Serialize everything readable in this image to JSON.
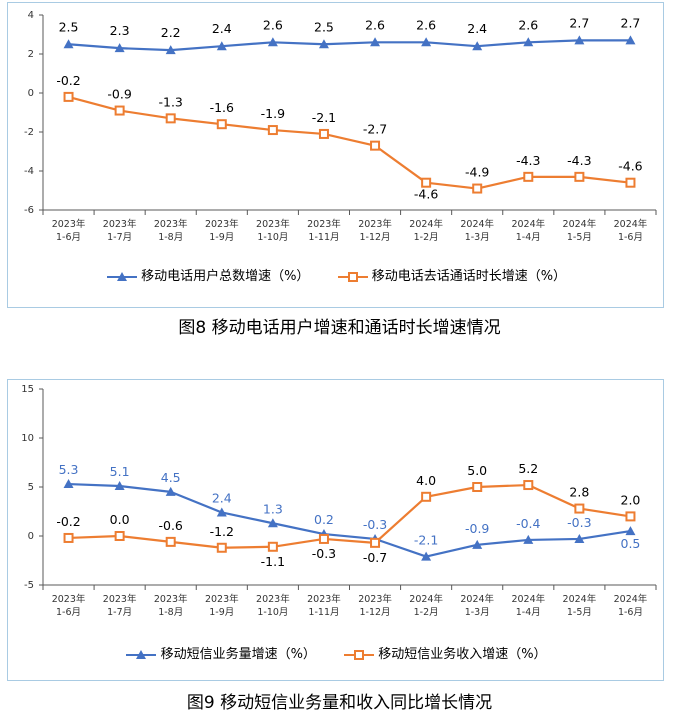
{
  "charts": [
    {
      "id": "chart1",
      "caption": "图8 移动电话用户增速和通话时长增速情况",
      "chart_data": {
        "type": "line",
        "categories": [
          "2023年\n1-6月",
          "2023年\n1-7月",
          "2023年\n1-8月",
          "2023年\n1-9月",
          "2023年\n1-10月",
          "2023年\n1-11月",
          "2023年\n1-12月",
          "2024年\n1-2月",
          "2024年\n1-3月",
          "2024年\n1-4月",
          "2024年\n1-5月",
          "2024年\n1-6月"
        ],
        "ylim": [
          -6,
          4
        ],
        "yticks": [
          -6,
          -4,
          -2,
          0,
          2,
          4
        ],
        "series": [
          {
            "name": "移动电话用户总数增速（%）",
            "color": "#4472c4",
            "marker": "triangle",
            "values": [
              2.5,
              2.3,
              2.2,
              2.4,
              2.6,
              2.5,
              2.6,
              2.6,
              2.4,
              2.6,
              2.7,
              2.7
            ]
          },
          {
            "name": "移动电话去话通话时长增速（%）",
            "color": "#ed7d31",
            "marker": "square",
            "values": [
              -0.2,
              -0.9,
              -1.3,
              -1.6,
              -1.9,
              -2.1,
              -2.7,
              -4.6,
              -4.9,
              -4.3,
              -4.3,
              -4.6
            ]
          }
        ]
      }
    },
    {
      "id": "chart2",
      "caption": "图9 移动短信业务量和收入同比增长情况",
      "chart_data": {
        "type": "line",
        "categories": [
          "2023年\n1-6月",
          "2023年\n1-7月",
          "2023年\n1-8月",
          "2023年\n1-9月",
          "2023年\n1-10月",
          "2023年\n1-11月",
          "2023年\n1-12月",
          "2024年\n1-2月",
          "2024年\n1-3月",
          "2024年\n1-4月",
          "2024年\n1-5月",
          "2024年\n1-6月"
        ],
        "ylim": [
          -5,
          15
        ],
        "yticks": [
          -5,
          0,
          5,
          10,
          15
        ],
        "series": [
          {
            "name": "移动短信业务量增速（%）",
            "color": "#4472c4",
            "marker": "triangle",
            "values": [
              5.3,
              5.1,
              4.5,
              2.4,
              1.3,
              0.2,
              -0.3,
              -2.1,
              -0.9,
              -0.4,
              -0.3,
              0.5
            ]
          },
          {
            "name": "移动短信业务收入增速（%）",
            "color": "#ed7d31",
            "marker": "square",
            "values": [
              -0.2,
              0.0,
              -0.6,
              -1.2,
              -1.1,
              -0.3,
              -0.7,
              4.0,
              5.0,
              5.2,
              2.8,
              2.0
            ]
          }
        ]
      }
    }
  ]
}
